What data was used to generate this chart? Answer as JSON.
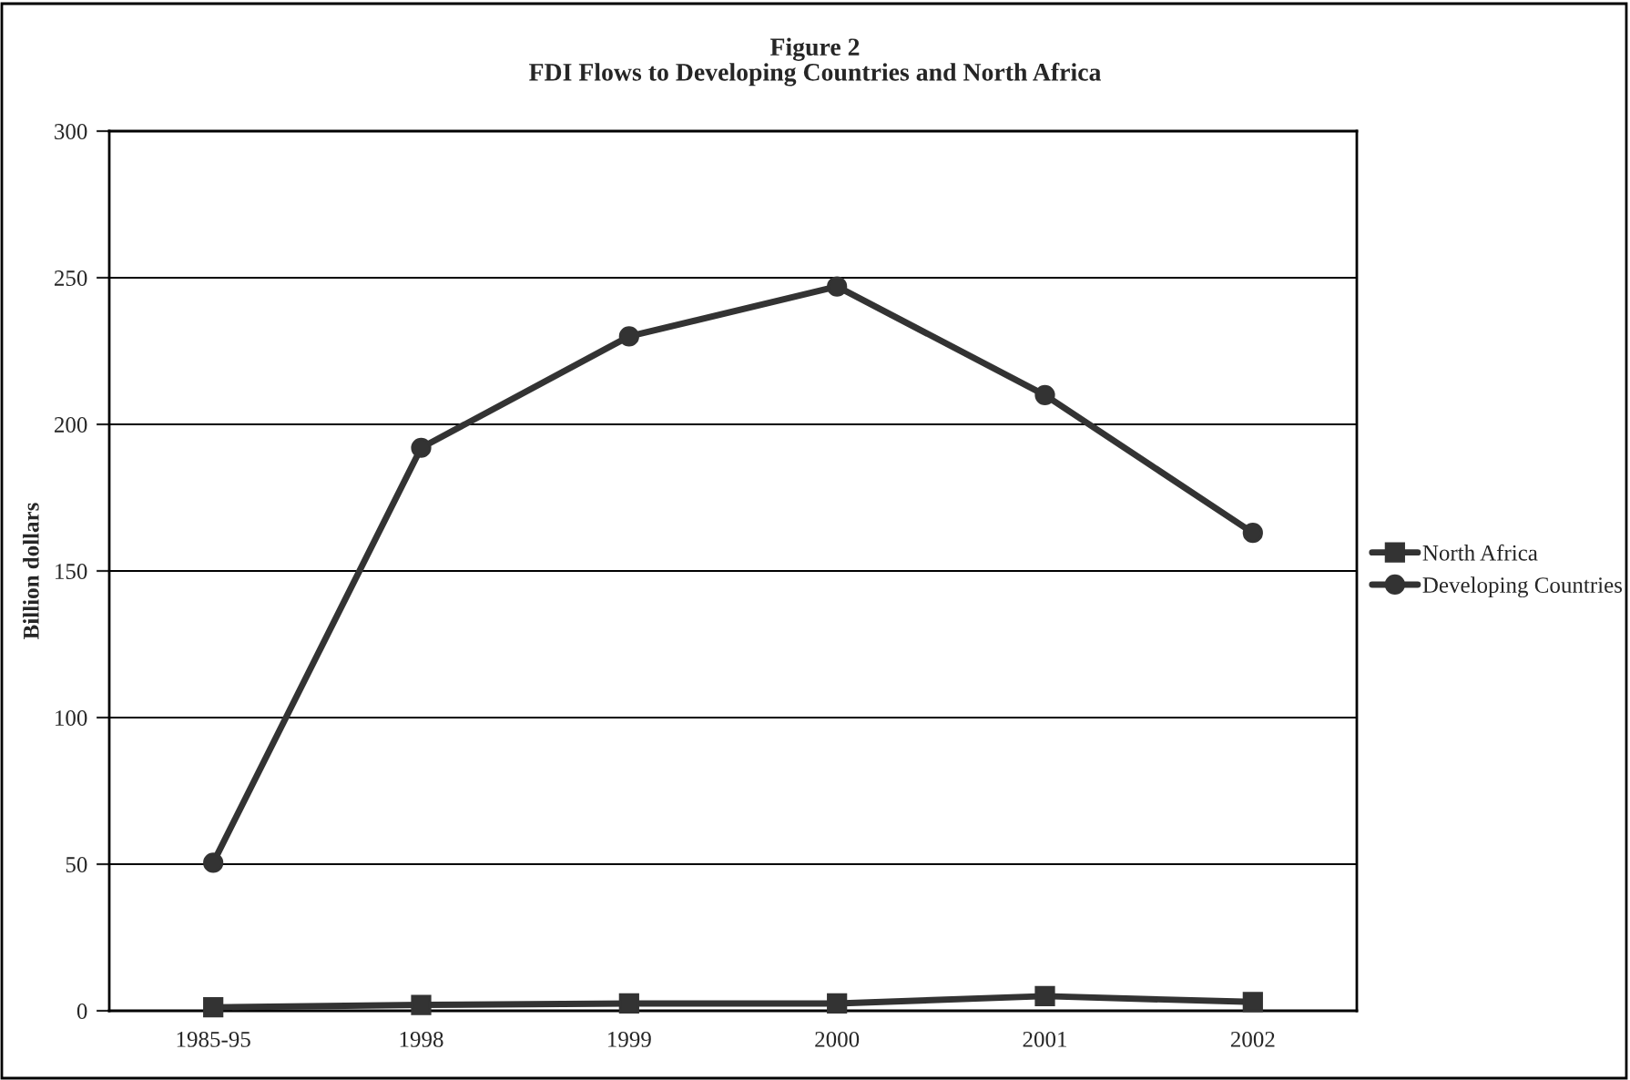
{
  "chart_data": {
    "type": "line",
    "title": "Figure 2\nFDI Flows to Developing Countries and North Africa",
    "ylabel": "Billion dollars",
    "categories": [
      "1985-95",
      "1998",
      "1999",
      "2000",
      "2001",
      "2002"
    ],
    "series": [
      {
        "name": "North Africa",
        "color": "#333333",
        "marker": "square",
        "values": [
          1.2,
          2,
          2.5,
          2.5,
          5,
          3
        ]
      },
      {
        "name": "Developing Countries",
        "color": "#333333",
        "marker": "circle",
        "values": [
          50.5,
          192,
          230,
          247,
          210,
          163
        ]
      }
    ],
    "ylim": [
      0,
      300
    ],
    "yticks": [
      0,
      50,
      100,
      150,
      200,
      250,
      300
    ],
    "grid": "y",
    "legend": "right",
    "line_style": "solid"
  }
}
